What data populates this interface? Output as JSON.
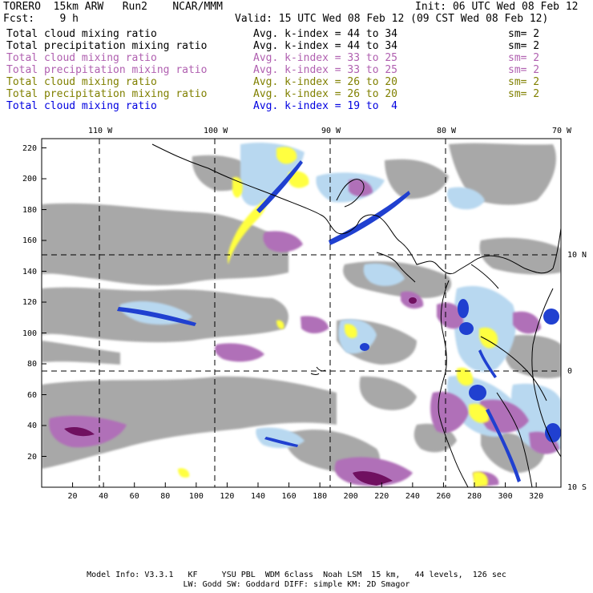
{
  "header": {
    "title": "TORERO  15km ARW   Run2    NCAR/MMM",
    "init": "Init: 06 UTC Wed 08 Feb 12",
    "fcst": "Fcst:    9 h",
    "valid": "Valid: 15 UTC Wed 08 Feb 12 (09 CST Wed 08 Feb 12)"
  },
  "legend": [
    {
      "field": "Total cloud mixing ratio",
      "stat": "Avg. k-index = 44 to 34",
      "sm": "sm= 2",
      "color": "#000000"
    },
    {
      "field": "Total precipitation mixing ratio",
      "stat": "Avg. k-index = 44 to 34",
      "sm": "sm= 2",
      "color": "#000000"
    },
    {
      "field": "Total cloud mixing ratio",
      "stat": "Avg. k-index = 33 to 25",
      "sm": "sm= 2",
      "color": "#b060b0"
    },
    {
      "field": "Total precipitation mixing ratio",
      "stat": "Avg. k-index = 33 to 25",
      "sm": "sm= 2",
      "color": "#b060b0"
    },
    {
      "field": "Total cloud mixing ratio",
      "stat": "Avg. k-index = 26 to 20",
      "sm": "sm= 2",
      "color": "#808000"
    },
    {
      "field": "Total precipitation mixing ratio",
      "stat": "Avg. k-index = 26 to 20",
      "sm": "sm= 2",
      "color": "#808000"
    },
    {
      "field": "Total cloud mixing ratio",
      "stat": "Avg. k-index = 19 to  4",
      "sm": "",
      "color": "#0000e0"
    }
  ],
  "map": {
    "lon_labels": [
      "110 W",
      "100 W",
      "90 W",
      "80 W",
      "70 W"
    ],
    "lat_labels": [
      "10 N",
      "0",
      "10 S"
    ],
    "x_ticks": [
      "20",
      "40",
      "60",
      "80",
      "100",
      "120",
      "140",
      "160",
      "180",
      "200",
      "220",
      "240",
      "260",
      "280",
      "300",
      "320"
    ],
    "y_ticks": [
      "220",
      "200",
      "180",
      "160",
      "140",
      "120",
      "100",
      "80",
      "60",
      "40",
      "20"
    ],
    "colors": {
      "gray": "#a8a8a8",
      "light_blue": "#b8d8f0",
      "blue": "#2040d0",
      "purple": "#b070b8",
      "yellow": "#ffff40",
      "dark_purple": "#701060"
    }
  },
  "footer": {
    "line1": "Model Info: V3.3.1   KF     YSU PBL  WDM 6class  Noah LSM  15 km,   44 levels,  126 sec",
    "line2": "LW: Godd SW: Goddard DIFF: simple KM: 2D Smagor"
  }
}
